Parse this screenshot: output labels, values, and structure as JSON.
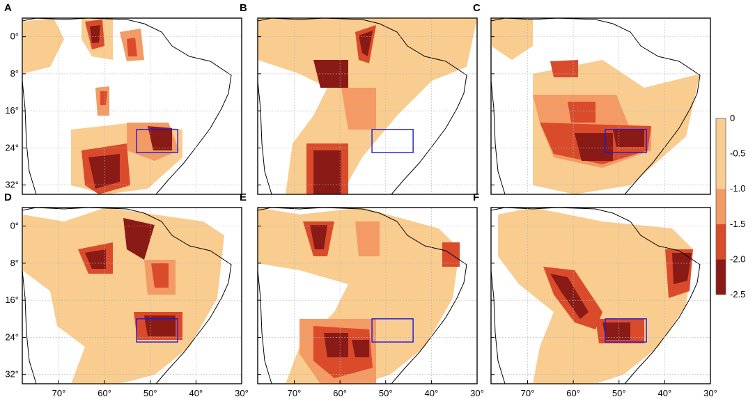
{
  "panels": [
    {
      "letter": "A",
      "has_y_axis": true,
      "has_x_axis": false
    },
    {
      "letter": "B",
      "has_y_axis": false,
      "has_x_axis": false
    },
    {
      "letter": "C",
      "has_y_axis": false,
      "has_x_axis": false
    },
    {
      "letter": "D",
      "has_y_axis": true,
      "has_x_axis": true
    },
    {
      "letter": "E",
      "has_y_axis": false,
      "has_x_axis": true
    },
    {
      "letter": "F",
      "has_y_axis": false,
      "has_x_axis": true
    }
  ],
  "y_ticks": [
    "0°",
    "8°",
    "16°",
    "24°",
    "32°"
  ],
  "x_ticks": [
    "70°",
    "60°",
    "50°",
    "40°",
    "30°"
  ],
  "legend": {
    "labels": [
      "0",
      "-0.5",
      "-1.0",
      "-1.5",
      "-2.0",
      "-2.5"
    ],
    "colors": [
      "#f9cc8f",
      "#f49a64",
      "#d94b2b",
      "#8a1a16"
    ],
    "bin_edges": [
      0,
      -1.0,
      -1.5,
      -2.0,
      -2.5
    ]
  },
  "colors": {
    "box": "#1a1adb",
    "land": "#ffffff",
    "coast": "#000000",
    "grid": "#b5b5b5"
  },
  "study_region_box": {
    "lon_min": -53,
    "lon_max": -44,
    "lat_min": -25,
    "lat_max": -20
  }
}
